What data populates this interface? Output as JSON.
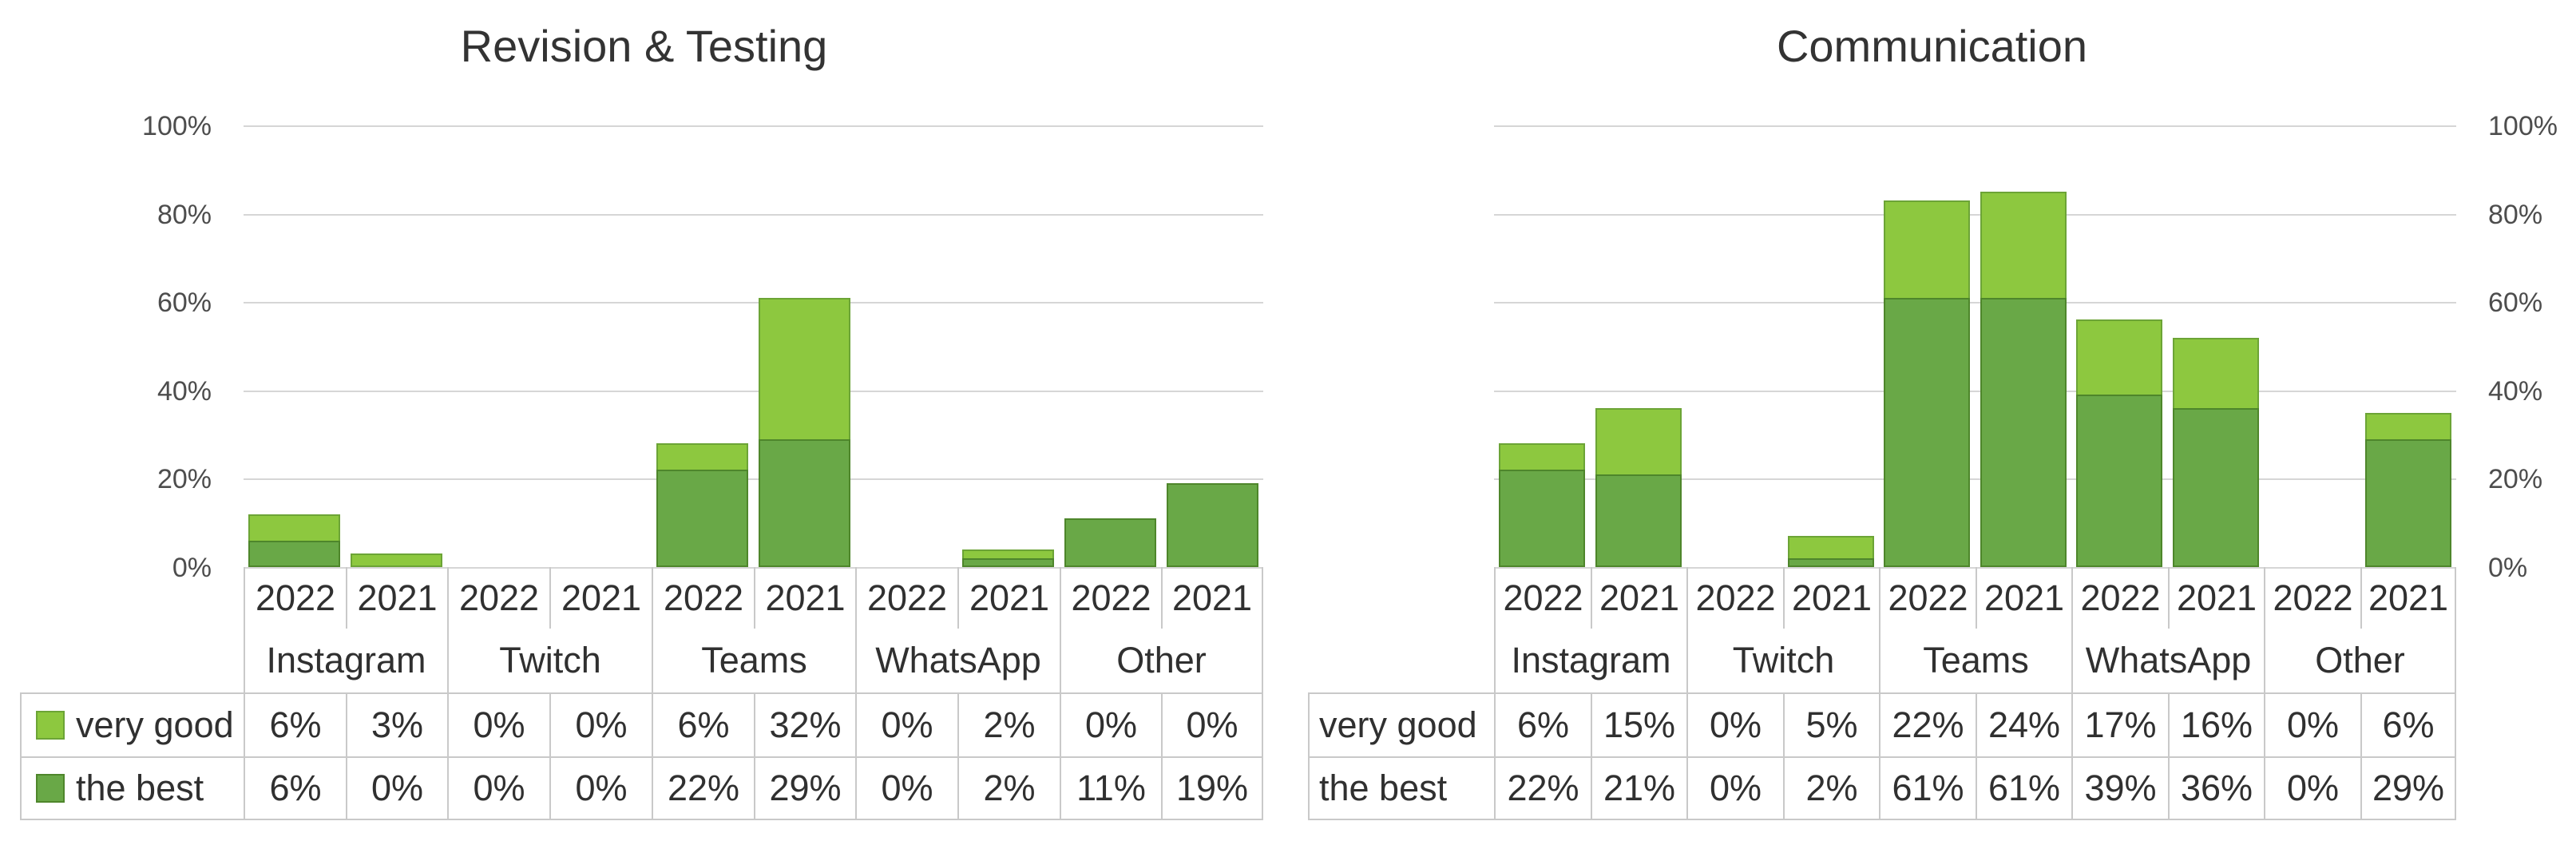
{
  "page": {
    "background": "#ffffff"
  },
  "colors": {
    "series_very_good": "#8dc83f",
    "series_very_good_border": "#6ca436",
    "series_the_best": "#69a847",
    "series_the_best_border": "#4e862b",
    "gridline": "#d6d6d6",
    "table_border": "#c9c9c9",
    "axis_label_text": "#4d4d4d",
    "table_text": "#303030",
    "title_text": "#333333"
  },
  "chart_data": [
    {
      "type": "bar",
      "stacked": true,
      "title": "Revision & Testing",
      "y_axis": {
        "side": "left",
        "min": 0,
        "max": 100,
        "tick_labels_top_to_bottom": [
          "100%",
          "80%",
          "60%",
          "40%",
          "20%",
          "0%"
        ],
        "gridlines": true
      },
      "x_groups": [
        "Instagram",
        "Twitch",
        "Teams",
        "WhatsApp",
        "Other"
      ],
      "years_per_group": [
        "2022",
        "2021"
      ],
      "series": [
        {
          "name": "very good",
          "stack_position": "top",
          "values_pct": [
            6,
            3,
            0,
            0,
            6,
            32,
            0,
            2,
            0,
            0
          ]
        },
        {
          "name": "the best",
          "stack_position": "bottom",
          "values_pct": [
            6,
            0,
            0,
            0,
            22,
            29,
            0,
            2,
            11,
            19
          ]
        }
      ],
      "data_table": {
        "legend_swatches": true
      }
    },
    {
      "type": "bar",
      "stacked": true,
      "title": "Communication",
      "y_axis": {
        "side": "right",
        "min": 0,
        "max": 100,
        "tick_labels_top_to_bottom": [
          "100%",
          "80%",
          "60%",
          "40%",
          "20%",
          "0%"
        ],
        "gridlines": true
      },
      "x_groups": [
        "Instagram",
        "Twitch",
        "Teams",
        "WhatsApp",
        "Other"
      ],
      "years_per_group": [
        "2022",
        "2021"
      ],
      "series": [
        {
          "name": "very good",
          "stack_position": "top",
          "values_pct": [
            6,
            15,
            0,
            5,
            22,
            24,
            17,
            16,
            0,
            6
          ]
        },
        {
          "name": "the best",
          "stack_position": "bottom",
          "values_pct": [
            22,
            21,
            0,
            2,
            61,
            61,
            39,
            36,
            0,
            29
          ]
        }
      ],
      "data_table": {
        "legend_swatches": false
      }
    }
  ]
}
